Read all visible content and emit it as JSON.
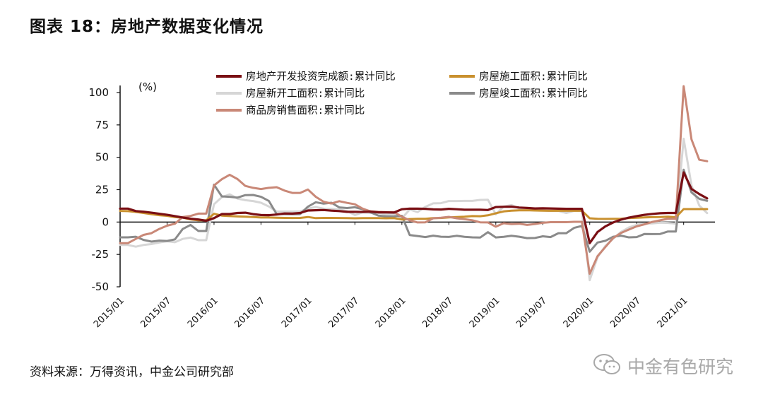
{
  "header": {
    "title": "图表 18：房地产数据变化情况"
  },
  "footer": {
    "source": "资料来源：万得资讯，中金公司研究部"
  },
  "watermark": {
    "text": "中金有色研究",
    "icon": "wechat-icon"
  },
  "chart_data": {
    "type": "line",
    "ylabel": "(%)",
    "ylim": [
      -50,
      110
    ],
    "yticks": [
      100,
      75,
      50,
      25,
      0,
      -25,
      -50
    ],
    "xticks": [
      "2015/01",
      "2015/07",
      "2016/01",
      "2016/07",
      "2017/01",
      "2017/07",
      "2018/01",
      "2018/07",
      "2019/01",
      "2019/07",
      "2020/01",
      "2020/07",
      "2021/01"
    ],
    "x_start": "2015/01",
    "x_end": "2021/05",
    "grid": false,
    "legend_position": "top",
    "series": [
      {
        "name": "房地产开发投资完成额:累计同比",
        "color": "#7a0f14",
        "width": 3.2,
        "values": [
          10.4,
          10.4,
          8.5,
          8.0,
          7.2,
          6.4,
          5.6,
          4.6,
          3.5,
          2.6,
          2.0,
          1.0,
          3.0,
          6.2,
          6.2,
          7.0,
          7.2,
          6.1,
          5.4,
          5.3,
          5.8,
          6.6,
          6.5,
          7.0,
          8.9,
          9.1,
          9.3,
          8.8,
          8.5,
          7.9,
          7.9,
          7.8,
          8.1,
          7.5,
          7.5,
          7.3,
          9.9,
          10.4,
          10.3,
          10.2,
          9.8,
          9.7,
          10.2,
          9.9,
          9.5,
          9.5,
          9.5,
          9.3,
          11.6,
          11.8,
          11.9,
          11.2,
          10.9,
          10.5,
          10.6,
          10.5,
          10.3,
          10.2,
          10.2,
          10.2,
          -16.3,
          -7.7,
          -3.3,
          -0.3,
          1.9,
          3.4,
          4.6,
          5.6,
          6.3,
          6.8,
          7.0,
          7.0,
          38.3,
          25.6,
          21.6,
          18.3
        ]
      },
      {
        "name": "房屋施工面积:累计同比",
        "color": "#c9902e",
        "width": 3.0,
        "values": [
          8.6,
          8.4,
          7.8,
          7.0,
          6.1,
          5.3,
          4.8,
          3.8,
          3.4,
          2.1,
          1.3,
          1.3,
          6.4,
          5.0,
          4.6,
          4.3,
          4.1,
          3.9,
          3.5,
          3.5,
          3.3,
          3.2,
          3.1,
          3.2,
          3.9,
          3.0,
          3.2,
          3.2,
          3.1,
          3.0,
          2.9,
          3.0,
          3.0,
          3.0,
          2.9,
          3.0,
          2.0,
          2.3,
          2.5,
          2.5,
          3.0,
          3.1,
          3.6,
          3.9,
          4.1,
          4.6,
          4.5,
          5.2,
          6.8,
          8.2,
          8.8,
          9.0,
          9.1,
          8.9,
          8.8,
          8.7,
          8.7,
          8.8,
          8.7,
          8.7,
          2.9,
          2.5,
          2.4,
          2.5,
          2.6,
          3.0,
          3.3,
          3.6,
          3.8,
          3.9,
          4.1,
          3.7,
          10.0,
          10.0,
          10.0,
          10.0
        ]
      },
      {
        "name": "房屋新开工面积:累计同比",
        "color": "#d6d6d6",
        "width": 3.0,
        "values": [
          -17.7,
          -17.7,
          -19.0,
          -17.7,
          -17.0,
          -15.8,
          -14.8,
          -15.6,
          -13.0,
          -12.0,
          -14.0,
          -14.0,
          13.7,
          19.2,
          21.4,
          18.1,
          16.9,
          16.2,
          14.9,
          12.0,
          8.1,
          8.1,
          8.1,
          8.2,
          10.4,
          11.6,
          10.3,
          10.2,
          9.7,
          8.5,
          5.4,
          7.5,
          7.0,
          7.0,
          6.0,
          6.4,
          2.9,
          9.7,
          7.7,
          11.8,
          14.4,
          14.6,
          16.2,
          16.2,
          16.3,
          16.3,
          17.1,
          17.2,
          6.0,
          11.9,
          13.1,
          10.5,
          10.1,
          9.5,
          8.9,
          8.6,
          8.6,
          7.0,
          8.6,
          8.5,
          -44.9,
          -27.2,
          -18.4,
          -12.8,
          -7.6,
          -4.2,
          -2.2,
          -1.2,
          -1.0,
          -0.5,
          -0.7,
          -1.2,
          64.3,
          28.2,
          12.8,
          6.9
        ]
      },
      {
        "name": "房屋竣工面积:累计同比",
        "color": "#8a8a8a",
        "width": 3.0,
        "values": [
          -11.8,
          -11.8,
          -11.3,
          -13.8,
          -15.1,
          -14.3,
          -14.6,
          -13.4,
          -5.4,
          -2.2,
          -6.9,
          -6.9,
          28.9,
          19.8,
          19.5,
          18.9,
          20.8,
          20.9,
          19.5,
          16.3,
          6.1,
          6.1,
          6.0,
          6.1,
          11.9,
          15.3,
          14.2,
          14.9,
          11.3,
          10.8,
          11.4,
          9.9,
          7.5,
          5.0,
          4.4,
          4.4,
          4.8,
          -10.0,
          -10.8,
          -11.6,
          -10.5,
          -11.3,
          -11.5,
          -10.6,
          -11.4,
          -11.8,
          -12.0,
          -7.8,
          -11.9,
          -11.4,
          -10.6,
          -11.3,
          -12.4,
          -12.3,
          -11.0,
          -11.6,
          -8.6,
          -8.6,
          -4.5,
          -3.0,
          -22.9,
          -15.8,
          -14.5,
          -11.3,
          -10.5,
          -11.8,
          -11.6,
          -9.2,
          -9.3,
          -9.2,
          -7.3,
          -7.3,
          40.4,
          22.9,
          17.9,
          16.4
        ]
      },
      {
        "name": "商品房销售面积:累计同比",
        "color": "#c98877",
        "width": 3.0,
        "values": [
          -16.3,
          -16.3,
          -13.0,
          -9.9,
          -8.6,
          -5.3,
          -2.8,
          -1.3,
          3.9,
          4.7,
          6.5,
          6.5,
          28.2,
          33.1,
          36.5,
          33.2,
          27.9,
          26.4,
          25.5,
          26.4,
          26.9,
          24.3,
          22.5,
          22.5,
          25.1,
          19.5,
          15.7,
          14.3,
          16.1,
          14.8,
          13.7,
          10.3,
          8.2,
          7.9,
          7.7,
          7.7,
          4.1,
          1.3,
          -0.3,
          -0.2,
          2.9,
          3.3,
          4.0,
          2.9,
          2.2,
          1.4,
          -0.2,
          -0.3,
          -3.6,
          -0.9,
          -1.6,
          -1.3,
          -2.2,
          -1.5,
          -0.6,
          -0.1,
          -0.1,
          -0.1,
          0.2,
          0.2,
          -39.9,
          -26.3,
          -19.3,
          -12.3,
          -8.4,
          -5.8,
          -3.3,
          -1.8,
          0.1,
          1.3,
          2.6,
          2.6,
          104.9,
          63.8,
          48.1,
          47.0
        ]
      }
    ]
  }
}
